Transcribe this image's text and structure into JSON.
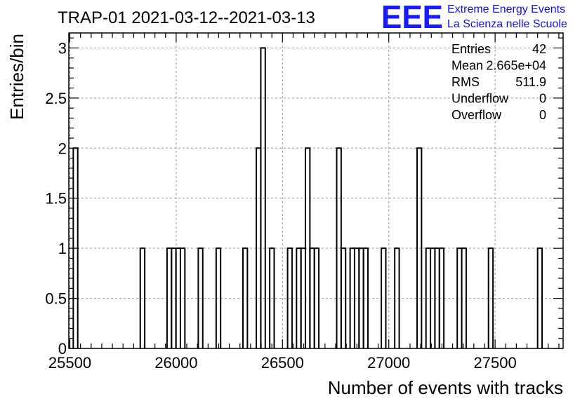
{
  "chart_data": {
    "type": "bar",
    "title": "TRAP-01 2021-03-12--2021-03-13",
    "xlabel": "Number of events with tracks",
    "ylabel": "Entries/bin",
    "xlim": [
      25495,
      27820
    ],
    "ylim": [
      0,
      3.15
    ],
    "bin_width": 21,
    "x_ticks": [
      25500,
      26000,
      26500,
      27000,
      27500
    ],
    "x_tick_labels": [
      "25500",
      "26000",
      "26500",
      "27000",
      "27500"
    ],
    "y_ticks": [
      0,
      0.5,
      1,
      1.5,
      2,
      2.5,
      3
    ],
    "y_tick_labels": [
      "0",
      "0.5",
      "1",
      "1.5",
      "2",
      "2.5",
      "3"
    ],
    "grid": true,
    "bins": [
      {
        "x0": 25516,
        "x1": 25537,
        "value": 2
      },
      {
        "x0": 25831,
        "x1": 25852,
        "value": 1
      },
      {
        "x0": 25957,
        "x1": 25978,
        "value": 1
      },
      {
        "x0": 25978,
        "x1": 25999,
        "value": 1
      },
      {
        "x0": 25999,
        "x1": 26020,
        "value": 1
      },
      {
        "x0": 26020,
        "x1": 26041,
        "value": 1
      },
      {
        "x0": 26104,
        "x1": 26125,
        "value": 1
      },
      {
        "x0": 26188,
        "x1": 26209,
        "value": 1
      },
      {
        "x0": 26314,
        "x1": 26335,
        "value": 1
      },
      {
        "x0": 26377,
        "x1": 26398,
        "value": 2
      },
      {
        "x0": 26398,
        "x1": 26419,
        "value": 3
      },
      {
        "x0": 26440,
        "x1": 26461,
        "value": 1
      },
      {
        "x0": 26524,
        "x1": 26545,
        "value": 1
      },
      {
        "x0": 26566,
        "x1": 26587,
        "value": 1
      },
      {
        "x0": 26587,
        "x1": 26608,
        "value": 1
      },
      {
        "x0": 26608,
        "x1": 26629,
        "value": 2
      },
      {
        "x0": 26629,
        "x1": 26650,
        "value": 1
      },
      {
        "x0": 26650,
        "x1": 26671,
        "value": 1
      },
      {
        "x0": 26755,
        "x1": 26776,
        "value": 2
      },
      {
        "x0": 26776,
        "x1": 26797,
        "value": 1
      },
      {
        "x0": 26818,
        "x1": 26839,
        "value": 1
      },
      {
        "x0": 26839,
        "x1": 26860,
        "value": 1
      },
      {
        "x0": 26860,
        "x1": 26881,
        "value": 1
      },
      {
        "x0": 26881,
        "x1": 26902,
        "value": 1
      },
      {
        "x0": 26965,
        "x1": 26986,
        "value": 1
      },
      {
        "x0": 27028,
        "x1": 27049,
        "value": 1
      },
      {
        "x0": 27133,
        "x1": 27154,
        "value": 2
      },
      {
        "x0": 27175,
        "x1": 27196,
        "value": 1
      },
      {
        "x0": 27196,
        "x1": 27217,
        "value": 1
      },
      {
        "x0": 27217,
        "x1": 27238,
        "value": 1
      },
      {
        "x0": 27238,
        "x1": 27259,
        "value": 1
      },
      {
        "x0": 27322,
        "x1": 27343,
        "value": 1
      },
      {
        "x0": 27343,
        "x1": 27364,
        "value": 1
      },
      {
        "x0": 27469,
        "x1": 27490,
        "value": 1
      },
      {
        "x0": 27700,
        "x1": 27721,
        "value": 1
      }
    ],
    "stats": [
      {
        "label": "Entries",
        "value": "42"
      },
      {
        "label": "Mean",
        "value": "2.665e+04"
      },
      {
        "label": "RMS",
        "value": "511.9"
      },
      {
        "label": "Underflow",
        "value": "0"
      },
      {
        "label": "Overflow",
        "value": "0"
      }
    ],
    "line_color": "#000000",
    "grid_color": "#9a9a9a"
  },
  "logo": {
    "text": "EEE",
    "line1": "Extreme Energy Events",
    "line2": "La Scienza nelle Scuole",
    "color": "#1010ee"
  }
}
